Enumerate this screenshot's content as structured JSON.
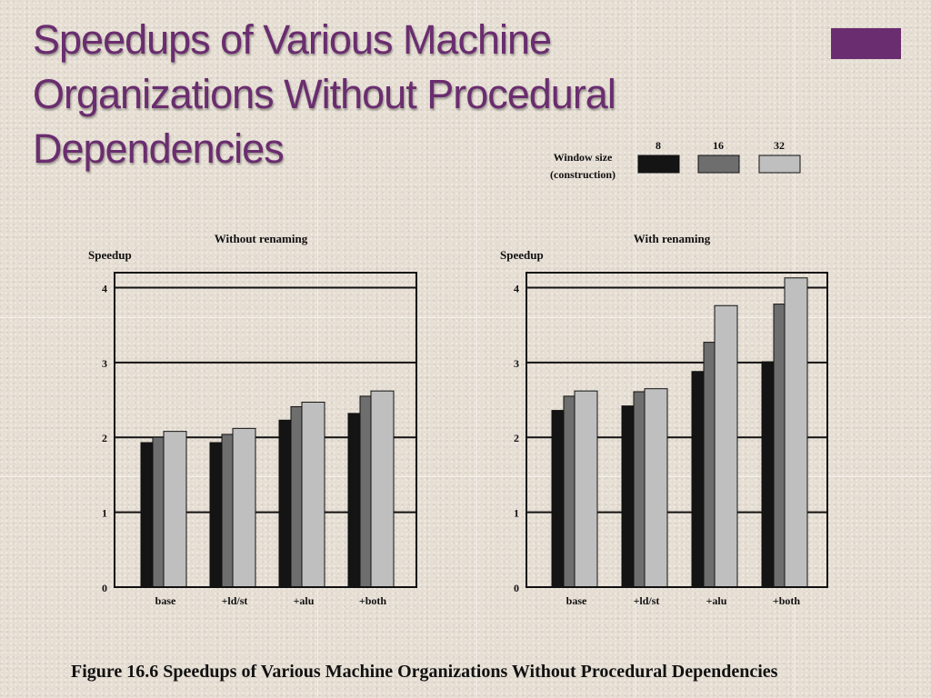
{
  "slide": {
    "title_lines": [
      "Speedups of Various Machine",
      "Organizations Without Procedural",
      "Dependencies"
    ],
    "caption": "Figure 16.6  Speedups of Various Machine Organizations Without Procedural Dependencies",
    "accent_color": "#6a2d6f"
  },
  "legend": {
    "title_lines": [
      "Window size",
      "(construction)"
    ],
    "entries": [
      {
        "label": "8",
        "color": "#141414"
      },
      {
        "label": "16",
        "color": "#6e6e6e"
      },
      {
        "label": "32",
        "color": "#bfbfbf"
      }
    ]
  },
  "chart_data": [
    {
      "type": "bar",
      "title": "Without renaming",
      "ylabel": "Speedup",
      "xlabel": "",
      "ylim": [
        0,
        4.2
      ],
      "yticks": [
        0,
        1,
        2,
        3,
        4
      ],
      "grid": true,
      "categories": [
        "base",
        "+ld/st",
        "+alu",
        "+both"
      ],
      "series": [
        {
          "name": "8",
          "values": [
            1.93,
            1.93,
            2.23,
            2.32
          ]
        },
        {
          "name": "16",
          "values": [
            2.0,
            2.04,
            2.41,
            2.55
          ]
        },
        {
          "name": "32",
          "values": [
            2.08,
            2.12,
            2.47,
            2.62
          ]
        }
      ]
    },
    {
      "type": "bar",
      "title": "With renaming",
      "ylabel": "Speedup",
      "xlabel": "",
      "ylim": [
        0,
        4.2
      ],
      "yticks": [
        0,
        1,
        2,
        3,
        4
      ],
      "grid": true,
      "categories": [
        "base",
        "+ld/st",
        "+alu",
        "+both"
      ],
      "series": [
        {
          "name": "8",
          "values": [
            2.36,
            2.42,
            2.88,
            3.01
          ]
        },
        {
          "name": "16",
          "values": [
            2.55,
            2.61,
            3.27,
            3.78
          ]
        },
        {
          "name": "32",
          "values": [
            2.62,
            2.65,
            3.76,
            4.13
          ]
        }
      ]
    }
  ]
}
